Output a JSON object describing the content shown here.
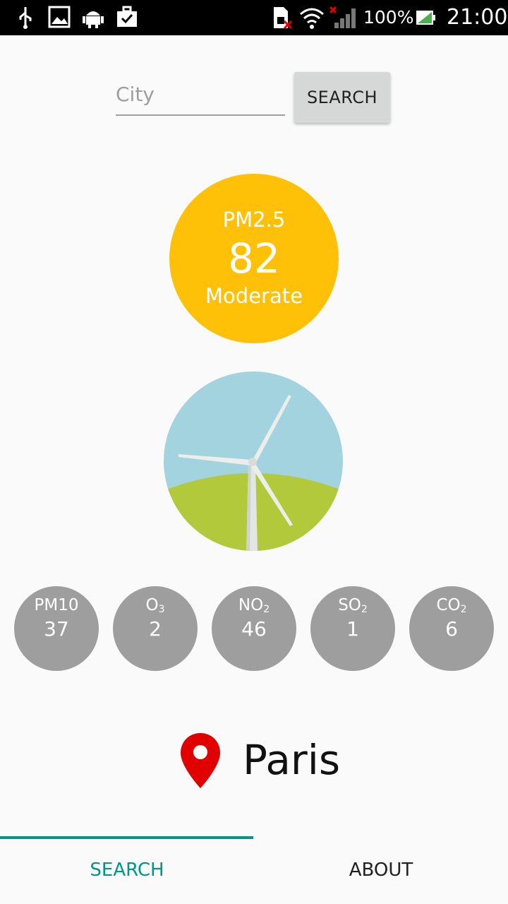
{
  "status_bar": {
    "battery_percent": "100%",
    "time": "21:00",
    "icons": [
      "usb-icon",
      "image-icon",
      "android-icon",
      "briefcase-check-icon",
      "sim-error-icon",
      "wifi-icon",
      "signal-icon",
      "battery-icon"
    ]
  },
  "search": {
    "placeholder": "City",
    "value": "",
    "button_label": "SEARCH"
  },
  "aqi": {
    "pollutant": "PM2.5",
    "value": "82",
    "category": "Moderate",
    "color": "#ffc107"
  },
  "illustration": "wind-turbine-icon",
  "pollutants": [
    {
      "name": "PM10",
      "sub": "",
      "value": "37"
    },
    {
      "name": "O",
      "sub": "3",
      "value": "2"
    },
    {
      "name": "NO",
      "sub": "2",
      "value": "46"
    },
    {
      "name": "SO",
      "sub": "2",
      "value": "1"
    },
    {
      "name": "CO",
      "sub": "2",
      "value": "6"
    }
  ],
  "location": {
    "city": "Paris"
  },
  "tabs": [
    {
      "label": "SEARCH",
      "active": true
    },
    {
      "label": "ABOUT",
      "active": false
    }
  ],
  "colors": {
    "accent": "#009688",
    "pollutant_bg": "#9e9e9e",
    "pin": "#e00000"
  }
}
